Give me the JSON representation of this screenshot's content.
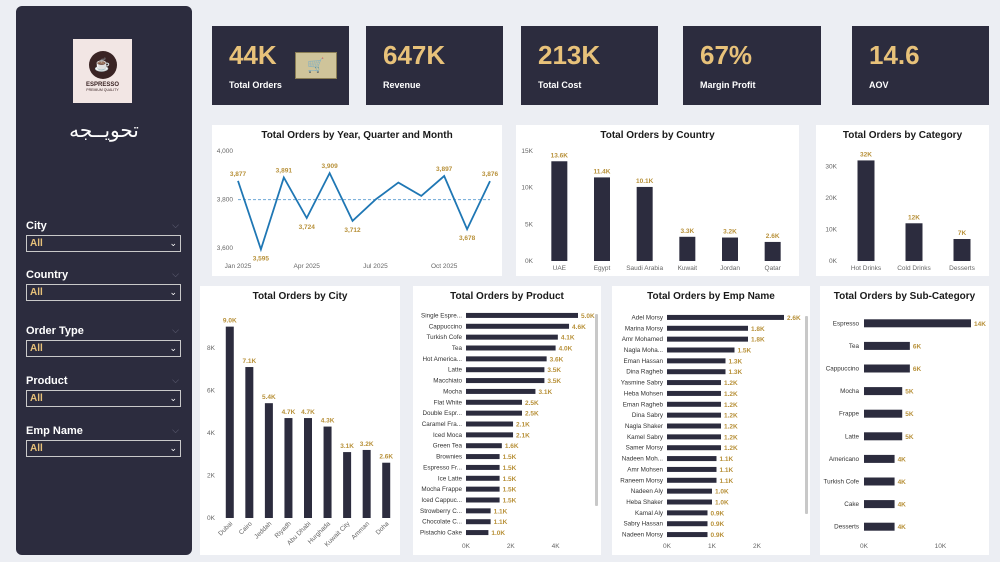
{
  "sidebar": {
    "logo": {
      "title": "ESPRESSO",
      "subtitle": "PREMIUM QUALITY"
    },
    "brand": "تحويــجه",
    "filters": [
      {
        "label": "City",
        "value": "All"
      },
      {
        "label": "Country",
        "value": "All"
      },
      {
        "label": "Order Type",
        "value": "All"
      },
      {
        "label": "Product",
        "value": "All"
      },
      {
        "label": "Emp Name",
        "value": "All"
      }
    ]
  },
  "kpis": [
    {
      "value": "44K",
      "label": "Total Orders"
    },
    {
      "value": "647K",
      "label": "Revenue"
    },
    {
      "value": "213K",
      "label": "Total Cost"
    },
    {
      "value": "67%",
      "label": "Margin Profit"
    },
    {
      "value": "14.6",
      "label": "AOV"
    }
  ],
  "colors": {
    "bar": "#2c2c3e",
    "line": "#1f77b4",
    "label": "#b8913a",
    "accent": "#e8c27a"
  },
  "chart_data": [
    {
      "id": "by_month",
      "type": "line",
      "title": "Total Orders by Year, Quarter and Month",
      "x": [
        "Jan 2025",
        "Feb 2025",
        "Mar 2025",
        "Apr 2025",
        "May 2025",
        "Jun 2025",
        "Jul 2025",
        "Aug 2025",
        "Sep 2025",
        "Oct 2025",
        "Nov 2025",
        "Dec 2025"
      ],
      "x_ticks": [
        "Jan 2025",
        "Apr 2025",
        "Jul 2025",
        "Oct 2025"
      ],
      "values": [
        3877,
        3595,
        3891,
        3724,
        3909,
        3712,
        3800,
        3870,
        3815,
        3897,
        3678,
        3876
      ],
      "labels": [
        "3,877",
        "3,595",
        "3,891",
        "3,724",
        "3,909",
        "3,712",
        "",
        "",
        "",
        "3,897",
        "3,678",
        "3,876"
      ],
      "average": 3800,
      "ylim": [
        3580,
        4000
      ],
      "y_ticks": [
        "3,600",
        "3,800",
        "4,000"
      ],
      "y_tick_values": [
        3600,
        3800,
        4000
      ]
    },
    {
      "id": "by_country",
      "type": "bar",
      "title": "Total Orders by Country",
      "categories": [
        "UAE",
        "Egypt",
        "Saudi Arabia",
        "Kuwait",
        "Jordan",
        "Qatar"
      ],
      "values": [
        13600,
        11400,
        10100,
        3300,
        3200,
        2600
      ],
      "labels": [
        "13.6K",
        "11.4K",
        "10.1K",
        "3.3K",
        "3.2K",
        "2.6K"
      ],
      "ylim": [
        0,
        15000
      ],
      "y_ticks": [
        "0K",
        "5K",
        "10K",
        "15K"
      ],
      "y_tick_values": [
        0,
        5000,
        10000,
        15000
      ]
    },
    {
      "id": "by_category",
      "type": "bar",
      "title": "Total Orders by Category",
      "categories": [
        "Hot Drinks",
        "Cold Drinks",
        "Desserts"
      ],
      "values": [
        32000,
        12000,
        7000
      ],
      "labels": [
        "32K",
        "12K",
        "7K"
      ],
      "ylim": [
        0,
        35000
      ],
      "y_ticks": [
        "0K",
        "10K",
        "20K",
        "30K"
      ],
      "y_tick_values": [
        0,
        10000,
        20000,
        30000
      ]
    },
    {
      "id": "by_city",
      "type": "bar",
      "title": "Total Orders by City",
      "categories": [
        "Dubai",
        "Cairo",
        "Jeddah",
        "Riyadh",
        "Abu Dhabi",
        "Hurghada",
        "Kuwait City",
        "Amman",
        "Doha"
      ],
      "values": [
        9000,
        7100,
        5400,
        4700,
        4700,
        4300,
        3100,
        3200,
        2600
      ],
      "labels": [
        "9.0K",
        "7.1K",
        "5.4K",
        "4.7K",
        "4.7K",
        "4.3K",
        "3.1K",
        "3.2K",
        "2.6K"
      ],
      "ylim": [
        0,
        9500
      ],
      "y_ticks": [
        "0K",
        "2K",
        "4K",
        "6K",
        "8K"
      ],
      "y_tick_values": [
        0,
        2000,
        4000,
        6000,
        8000
      ]
    },
    {
      "id": "by_product",
      "type": "bar",
      "title": "Total Orders by Product",
      "categories": [
        "Single Espre...",
        "Cappuccino",
        "Turkish Cofe",
        "Tea",
        "Hot America...",
        "Latte",
        "Macchiato",
        "Mocha",
        "Flat White",
        "Double Espr...",
        "Caramel Fra...",
        "Iced Moca",
        "Green Tea",
        "Brownies",
        "Espresso Fr...",
        "Ice Latte",
        "Mocha Frappe",
        "Iced Cappuc...",
        "Strowberry C...",
        "Chocolate C...",
        "Pistachio Cake"
      ],
      "values": [
        5000,
        4600,
        4100,
        4000,
        3600,
        3500,
        3500,
        3100,
        2500,
        2500,
        2100,
        2100,
        1600,
        1500,
        1500,
        1500,
        1500,
        1500,
        1100,
        1100,
        1000
      ],
      "labels": [
        "5.0K",
        "4.6K",
        "4.1K",
        "4.0K",
        "3.6K",
        "3.5K",
        "3.5K",
        "3.1K",
        "2.5K",
        "2.5K",
        "2.1K",
        "2.1K",
        "1.6K",
        "1.5K",
        "1.5K",
        "1.5K",
        "1.5K",
        "1.5K",
        "1.1K",
        "1.1K",
        "1.0K"
      ],
      "xlim": [
        0,
        5000
      ],
      "x_ticks": [
        "0K",
        "2K",
        "4K"
      ],
      "x_tick_values": [
        0,
        2000,
        4000
      ]
    },
    {
      "id": "by_emp",
      "type": "bar",
      "title": "Total Orders by Emp Name",
      "categories": [
        "Adel Morsy",
        "Marina Morsy",
        "Amr Mohamed",
        "Nagla Moha...",
        "Eman Hassan",
        "Dina Ragheb",
        "Yasmine Sabry",
        "Heba Mohsen",
        "Eman Ragheb",
        "Dina Sabry",
        "Nagla Shaker",
        "Kamel Sabry",
        "Samer Morsy",
        "Nadeen Moh...",
        "Amr Mohsen",
        "Raneem Morsy",
        "Nadeen Aly",
        "Heba Shaker",
        "Kamal Aly",
        "Sabry Hassan",
        "Nadeen Morsy"
      ],
      "values": [
        2600,
        1800,
        1800,
        1500,
        1300,
        1300,
        1200,
        1200,
        1200,
        1200,
        1200,
        1200,
        1200,
        1100,
        1100,
        1100,
        1000,
        1000,
        900,
        900,
        900
      ],
      "labels": [
        "2.6K",
        "1.8K",
        "1.8K",
        "1.5K",
        "1.3K",
        "1.3K",
        "1.2K",
        "1.2K",
        "1.2K",
        "1.2K",
        "1.2K",
        "1.2K",
        "1.2K",
        "1.1K",
        "1.1K",
        "1.1K",
        "1.0K",
        "1.0K",
        "0.9K",
        "0.9K",
        "0.9K"
      ],
      "xlim": [
        0,
        2600
      ],
      "x_ticks": [
        "0K",
        "1K",
        "2K"
      ],
      "x_tick_values": [
        0,
        1000,
        2000
      ]
    },
    {
      "id": "by_subcat",
      "type": "bar",
      "title": "Total Orders by Sub-Category",
      "categories": [
        "Espresso",
        "Tea",
        "Cappuccino",
        "Mocha",
        "Frappe",
        "Latte",
        "Americano",
        "Turkish Cofe",
        "Cake",
        "Desserts"
      ],
      "values": [
        14000,
        6000,
        6000,
        5000,
        5000,
        5000,
        4000,
        4000,
        4000,
        4000
      ],
      "labels": [
        "14K",
        "6K",
        "6K",
        "5K",
        "5K",
        "5K",
        "4K",
        "4K",
        "4K",
        "4K"
      ],
      "xlim": [
        0,
        14000
      ],
      "x_ticks": [
        "0K",
        "10K"
      ],
      "x_tick_values": [
        0,
        10000
      ]
    }
  ]
}
